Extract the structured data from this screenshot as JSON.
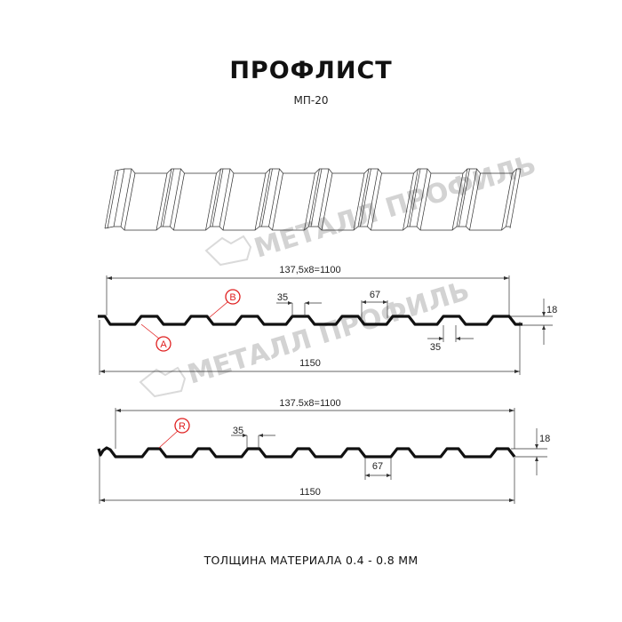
{
  "header": {
    "title": "ПРОФЛИСТ",
    "subtitle": "МП-20"
  },
  "watermark": {
    "text": "МЕТАЛЛ ПРОФИЛЬ",
    "color": "#cfcfcf"
  },
  "profile_1": {
    "pitch_label": "137,5x8=1100",
    "width_label": "1150",
    "top_flat_label": "35",
    "bottom_flat_label": "35",
    "rib_width_label": "67",
    "height_label": "18",
    "callout_a": "A",
    "callout_b": "B"
  },
  "profile_2": {
    "pitch_label": "137.5x8=1100",
    "width_label": "1150",
    "top_flat_label": "35",
    "rib_width_label": "67",
    "height_label": "18",
    "callout_r": "R"
  },
  "footer": {
    "thickness": "ТОЛЩИНА МАТЕРИАЛА 0.4 - 0.8 ММ"
  },
  "colors": {
    "callout": "#e02020",
    "profile": "#111111"
  }
}
